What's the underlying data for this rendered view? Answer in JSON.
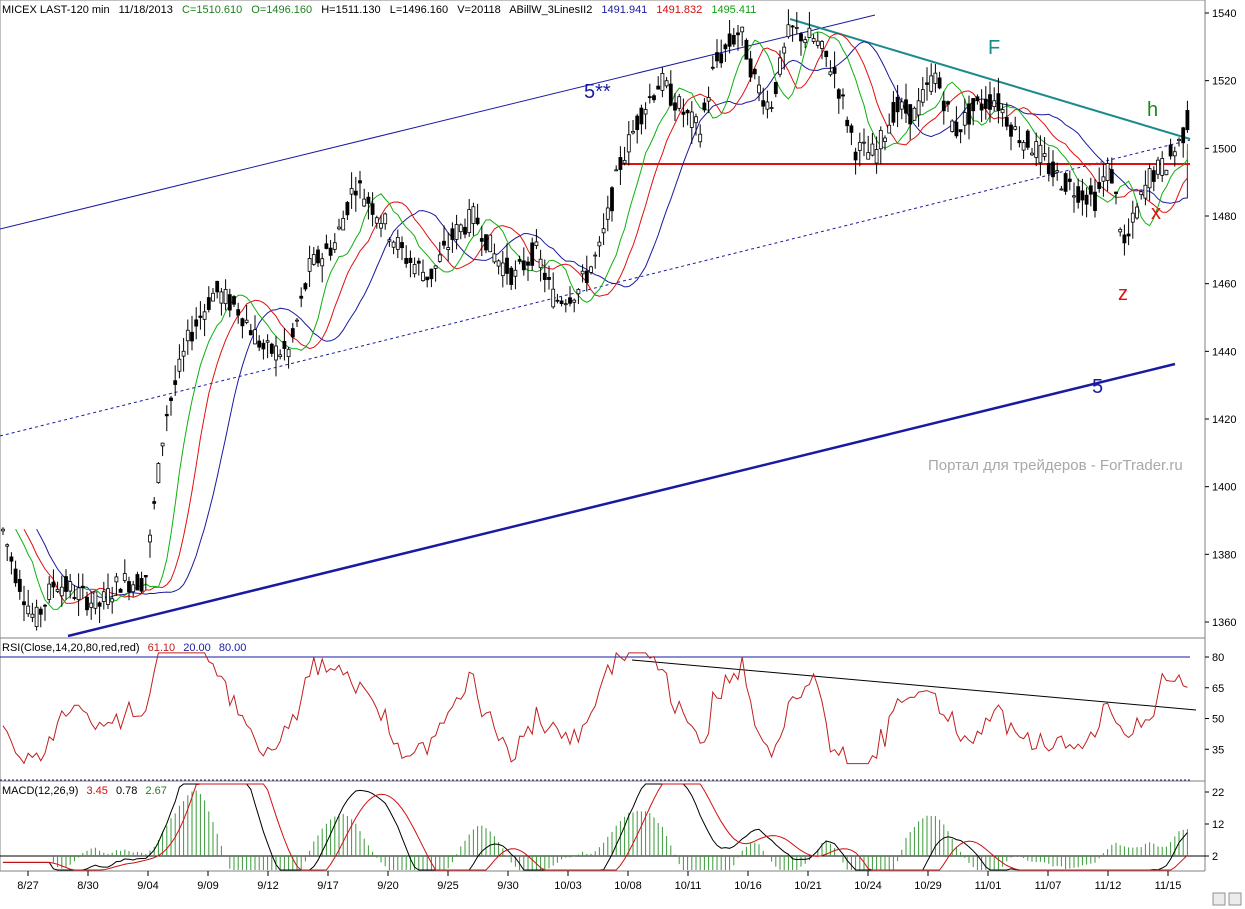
{
  "header": {
    "instrument": "MICEX LAST-120 min",
    "date": "11/18/2013",
    "close": "C=1510.610",
    "open": "O=1496.160",
    "high": "H=1511.130",
    "low": "L=1496.160",
    "volume": "V=20118",
    "indicator_name": "ABillW_3LinesII2",
    "indicator_v1": "1491.941",
    "indicator_v2": "1491.832",
    "indicator_v3": "1495.411"
  },
  "watermark": "Портал для трейдеров - ForTrader.ru",
  "annotations": {
    "wave_5_star": "5**",
    "wave_f": "F",
    "wave_h": "h",
    "wave_x": "x",
    "wave_z": "z",
    "wave_5": "5"
  },
  "colors": {
    "candle": "#000000",
    "jaw": "#1a1aa0",
    "teeth": "#e01010",
    "lips": "#10b010",
    "channel": "#1a1aa0",
    "resistance": "#e01010",
    "trend_down": "#1a8a8a",
    "rsi": "#c02020",
    "macd_line": "#000000",
    "macd_signal": "#d01010",
    "macd_hist": "#3a9a3a"
  },
  "rsi": {
    "label": "RSI(Close,14,20,80,red,red)",
    "value": "61.10",
    "low": "20.00",
    "high": "80.00",
    "ticks": [
      "80",
      "65",
      "50",
      "35"
    ]
  },
  "macd": {
    "label": "MACD(12,26,9)",
    "v1": "3.45",
    "v2": "0.78",
    "v3": "2.67",
    "ticks": [
      "22",
      "12",
      "2"
    ]
  },
  "price_axis": {
    "ticks": [
      "1540",
      "1520",
      "1500",
      "1480",
      "1460",
      "1440",
      "1420",
      "1400",
      "1380",
      "1360"
    ]
  },
  "date_axis": {
    "ticks": [
      "8/27",
      "8/30",
      "9/04",
      "9/09",
      "9/12",
      "9/17",
      "9/20",
      "9/25",
      "9/30",
      "10/03",
      "10/08",
      "10/11",
      "10/16",
      "10/21",
      "10/24",
      "10/29",
      "11/01",
      "11/07",
      "11/12",
      "11/15"
    ]
  },
  "chart_data": {
    "type": "candlestick",
    "ylim": [
      1350,
      1545
    ],
    "series_close_approx": [
      {
        "date": "8/27",
        "value": 1375
      },
      {
        "date": "8/30",
        "value": 1368
      },
      {
        "date": "9/04",
        "value": 1372
      },
      {
        "date": "9/09",
        "value": 1455
      },
      {
        "date": "9/12",
        "value": 1440
      },
      {
        "date": "9/17",
        "value": 1475
      },
      {
        "date": "9/20",
        "value": 1470
      },
      {
        "date": "9/25",
        "value": 1478
      },
      {
        "date": "9/30",
        "value": 1465
      },
      {
        "date": "10/03",
        "value": 1458
      },
      {
        "date": "10/08",
        "value": 1500
      },
      {
        "date": "10/11",
        "value": 1510
      },
      {
        "date": "10/16",
        "value": 1535
      },
      {
        "date": "10/21",
        "value": 1525
      },
      {
        "date": "10/24",
        "value": 1497
      },
      {
        "date": "10/29",
        "value": 1515
      },
      {
        "date": "11/01",
        "value": 1508
      },
      {
        "date": "11/07",
        "value": 1490
      },
      {
        "date": "11/12",
        "value": 1470
      },
      {
        "date": "11/15",
        "value": 1505
      }
    ],
    "resistance_level": 1495
  }
}
